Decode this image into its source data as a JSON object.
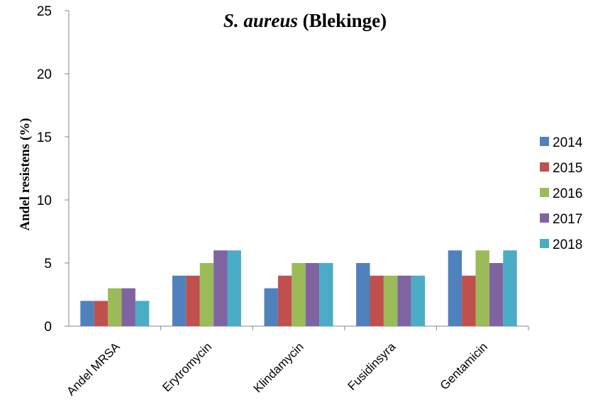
{
  "chart_data": {
    "type": "bar",
    "title_italic": "S. aureus",
    "title_rest": "(Blekinge)",
    "ylabel": "Andel resistens (%)",
    "xlabel": "",
    "ylim": [
      0,
      25
    ],
    "yticks": [
      0,
      5,
      10,
      15,
      20,
      25
    ],
    "categories": [
      "Andel MRSA",
      "Erytromycin",
      "Klindamycin",
      "Fusidinsyra",
      "Gentamicin"
    ],
    "series": [
      {
        "name": "2014",
        "color": "#4F81BD",
        "values": [
          2,
          4,
          3,
          5,
          6
        ]
      },
      {
        "name": "2015",
        "color": "#C0504D",
        "values": [
          2,
          4,
          4,
          4,
          4
        ]
      },
      {
        "name": "2016",
        "color": "#9BBB59",
        "values": [
          3,
          5,
          5,
          4,
          6
        ]
      },
      {
        "name": "2017",
        "color": "#8064A2",
        "values": [
          3,
          6,
          5,
          4,
          5
        ]
      },
      {
        "name": "2018",
        "color": "#4BACC6",
        "values": [
          2,
          6,
          5,
          4,
          6
        ]
      }
    ],
    "grid": false,
    "legend": "right"
  }
}
